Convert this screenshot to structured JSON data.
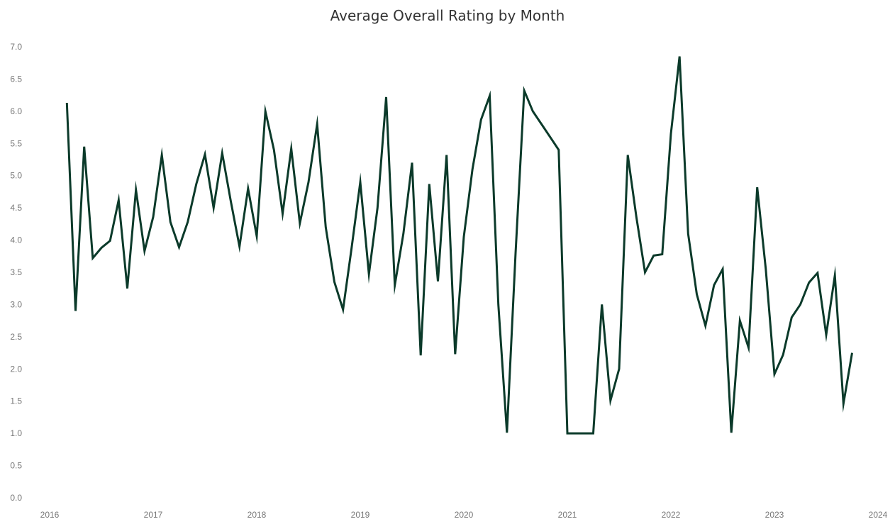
{
  "chart_data": {
    "type": "line",
    "title": "Average Overall Rating by Month",
    "xlabel": "",
    "ylabel": "",
    "xlim": [
      "2016-01",
      "2024-01"
    ],
    "ylim": [
      0,
      7.0
    ],
    "yticks": [
      "0.0",
      "0.5",
      "1.0",
      "1.5",
      "2.0",
      "2.5",
      "3.0",
      "3.5",
      "4.0",
      "4.5",
      "5.0",
      "5.5",
      "6.0",
      "6.5",
      "7.0"
    ],
    "xticks": [
      "2016",
      "2017",
      "2018",
      "2019",
      "2020",
      "2021",
      "2022",
      "2023",
      "2024"
    ],
    "grid": false,
    "series": [
      {
        "color": "#0b3a2a",
        "points": [
          [
            "2016-03",
            6.13
          ],
          [
            "2016-04",
            2.9
          ],
          [
            "2016-05",
            5.45
          ],
          [
            "2016-06",
            3.72
          ],
          [
            "2016-07",
            3.88
          ],
          [
            "2016-08",
            3.99
          ],
          [
            "2016-09",
            4.62
          ],
          [
            "2016-10",
            3.25
          ],
          [
            "2016-11",
            4.78
          ],
          [
            "2016-12",
            3.83
          ],
          [
            "2017-01",
            4.36
          ],
          [
            "2017-02",
            5.32
          ],
          [
            "2017-03",
            4.28
          ],
          [
            "2017-04",
            3.89
          ],
          [
            "2017-05",
            4.28
          ],
          [
            "2017-06",
            4.87
          ],
          [
            "2017-07",
            5.33
          ],
          [
            "2017-08",
            4.5
          ],
          [
            "2017-09",
            5.35
          ],
          [
            "2017-10",
            4.6
          ],
          [
            "2017-11",
            3.9
          ],
          [
            "2017-12",
            4.8
          ],
          [
            "2018-01",
            4.06
          ],
          [
            "2018-02",
            6.0
          ],
          [
            "2018-03",
            5.4
          ],
          [
            "2018-04",
            4.41
          ],
          [
            "2018-05",
            5.42
          ],
          [
            "2018-06",
            4.26
          ],
          [
            "2018-07",
            4.9
          ],
          [
            "2018-08",
            5.8
          ],
          [
            "2018-09",
            4.2
          ],
          [
            "2018-10",
            3.35
          ],
          [
            "2018-11",
            2.92
          ],
          [
            "2018-12",
            3.88
          ],
          [
            "2019-01",
            4.9
          ],
          [
            "2019-02",
            3.47
          ],
          [
            "2019-03",
            4.5
          ],
          [
            "2019-04",
            6.22
          ],
          [
            "2019-05",
            3.3
          ],
          [
            "2019-06",
            4.1
          ],
          [
            "2019-07",
            5.2
          ],
          [
            "2019-08",
            2.21
          ],
          [
            "2019-09",
            4.87
          ],
          [
            "2019-10",
            3.36
          ],
          [
            "2019-11",
            5.32
          ],
          [
            "2019-12",
            2.23
          ],
          [
            "2020-01",
            4.05
          ],
          [
            "2020-02",
            5.1
          ],
          [
            "2020-03",
            5.87
          ],
          [
            "2020-04",
            6.24
          ],
          [
            "2020-05",
            3.0
          ],
          [
            "2020-06",
            1.01
          ],
          [
            "2020-07",
            3.8
          ],
          [
            "2020-08",
            6.32
          ],
          [
            "2020-09",
            6.0
          ],
          [
            "2020-10",
            5.8
          ],
          [
            "2020-11",
            5.6
          ],
          [
            "2020-12",
            5.4
          ],
          [
            "2021-01",
            1.0
          ],
          [
            "2021-02",
            1.0
          ],
          [
            "2021-03",
            1.0
          ],
          [
            "2021-04",
            1.0
          ],
          [
            "2021-05",
            3.0
          ],
          [
            "2021-06",
            1.51
          ],
          [
            "2021-07",
            2.0
          ],
          [
            "2021-08",
            5.32
          ],
          [
            "2021-09",
            4.36
          ],
          [
            "2021-10",
            3.5
          ],
          [
            "2021-11",
            3.76
          ],
          [
            "2021-12",
            3.78
          ],
          [
            "2022-01",
            5.65
          ],
          [
            "2022-02",
            6.85
          ],
          [
            "2022-03",
            4.1
          ],
          [
            "2022-04",
            3.16
          ],
          [
            "2022-05",
            2.67
          ],
          [
            "2022-06",
            3.3
          ],
          [
            "2022-07",
            3.55
          ],
          [
            "2022-08",
            1.01
          ],
          [
            "2022-09",
            2.75
          ],
          [
            "2022-10",
            2.33
          ],
          [
            "2022-11",
            4.82
          ],
          [
            "2022-12",
            3.55
          ],
          [
            "2023-01",
            1.92
          ],
          [
            "2023-02",
            2.22
          ],
          [
            "2023-03",
            2.8
          ],
          [
            "2023-04",
            3.0
          ],
          [
            "2023-05",
            3.34
          ],
          [
            "2023-06",
            3.49
          ],
          [
            "2023-07",
            2.53
          ],
          [
            "2023-08",
            3.45
          ],
          [
            "2023-09",
            1.46
          ],
          [
            "2023-10",
            2.25
          ]
        ]
      }
    ]
  }
}
